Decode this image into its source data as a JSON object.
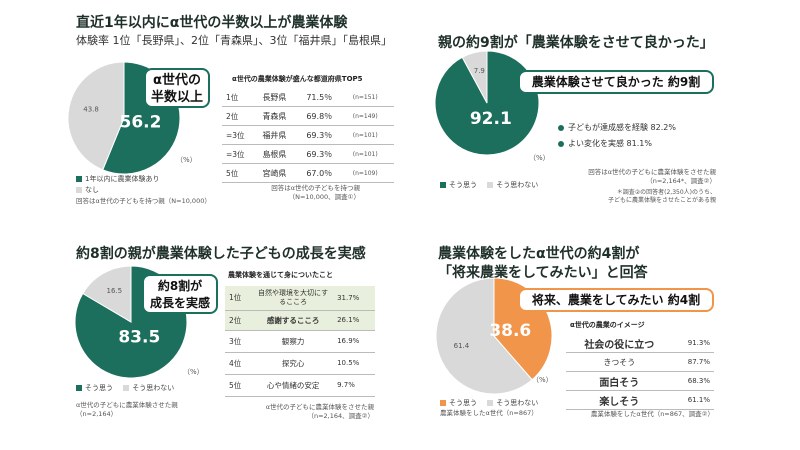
{
  "q1": {
    "title": "直近1年以内にα世代の半数以上が農業体験",
    "subtitle": "体験率 1位「長野県」、2位「青森県」、3位「福井県」「島根県」",
    "callout": [
      "α世代の",
      "半数以上"
    ],
    "unit": "（%）",
    "legend": [
      "1年以内に農業体験あり",
      "なし"
    ],
    "note": "回答はα世代の子どもを持つ親（N=10,000）",
    "table_title": "α世代の農業体験が盛んな都道府県TOP5",
    "table_rows": [
      {
        "rank": "1位",
        "pref": "長野県",
        "pct": "71.5％",
        "n": "(n=151)"
      },
      {
        "rank": "2位",
        "pref": "青森県",
        "pct": "69.8％",
        "n": "(n=149)"
      },
      {
        "rank": "=3位",
        "pref": "福井県",
        "pct": "69.3％",
        "n": "(n=101)"
      },
      {
        "rank": "=3位",
        "pref": "島根県",
        "pct": "69.3％",
        "n": "(n=101)"
      },
      {
        "rank": "5位",
        "pref": "宮崎県",
        "pct": "67.0％",
        "n": "(n=109)"
      }
    ],
    "table_note": [
      "回答はα世代の子どもを持つ親",
      "（N=10,000、調査①）"
    ]
  },
  "q2": {
    "title": "親の約9割が「農業体験をさせて良かった」",
    "callout": "農業体験させて良かった 約9割",
    "bullets": [
      "子どもが達成感を経験 82.2%",
      "よい変化を実感 81.1%"
    ],
    "unit": "（%）",
    "legend": [
      "そう思う",
      "そう思わない"
    ],
    "note": [
      "回答はα世代の子どもに農業体験をさせた親",
      "（n=2,164*、調査②）"
    ],
    "note2": [
      "＊調査②の回答者(2,350人)のうち、",
      "子どもに農業体験をさせたことがある親"
    ]
  },
  "q3": {
    "title": "約8割の親が農業体験した子どもの成長を実感",
    "callout": [
      "約8割が",
      "成長を実感"
    ],
    "unit": "（%）",
    "legend": [
      "そう思う",
      "そう思わない"
    ],
    "note": [
      "α世代の子どもに農業体験させた親",
      "（n=2,164）"
    ],
    "table_title": "農業体験を通じて身についたこと",
    "table_rows": [
      {
        "rank": "1位",
        "item": "自然や環境を大切にするこころ",
        "pct": "31.7%"
      },
      {
        "rank": "2位",
        "item": "感謝するこころ",
        "pct": "26.1%"
      },
      {
        "rank": "3位",
        "item": "観察力",
        "pct": "16.9%"
      },
      {
        "rank": "4位",
        "item": "探究心",
        "pct": "10.5%"
      },
      {
        "rank": "5位",
        "item": "心や情緒の安定",
        "pct": "9.7%"
      }
    ],
    "table_note": [
      "α世代の子どもに農業体験をさせた親",
      "（n=2,164、調査②）"
    ]
  },
  "q4": {
    "title": [
      "農業体験をしたα世代の約4割が",
      "「将来農業をしてみたい」と回答"
    ],
    "callout": "将来、農業をしてみたい 約4割",
    "unit": "（%）",
    "legend": [
      "そう思う",
      "そう思わない"
    ],
    "note": "農業体験をしたα世代（n=867）",
    "table_title": "α世代の農業のイメージ",
    "table_rows": [
      {
        "item": "社会の役に立つ",
        "pct": "91.3%"
      },
      {
        "item": "きつそう",
        "pct": "87.7%"
      },
      {
        "item": "面白そう",
        "pct": "68.3%"
      },
      {
        "item": "楽しそう",
        "pct": "61.1%"
      }
    ],
    "table_note": "農業体験をしたα世代（n=867、調査②）"
  },
  "chart_data": [
    {
      "type": "pie",
      "categories": [
        "1年以内に農業体験あり",
        "なし"
      ],
      "values": [
        56.2,
        43.8
      ],
      "colors": [
        "#1c6f5c",
        "#d9d9d9"
      ]
    },
    {
      "type": "pie",
      "categories": [
        "そう思う",
        "そう思わない"
      ],
      "values": [
        92.1,
        7.9
      ],
      "colors": [
        "#1c6f5c",
        "#d9d9d9"
      ]
    },
    {
      "type": "pie",
      "categories": [
        "そう思う",
        "そう思わない"
      ],
      "values": [
        83.5,
        16.5
      ],
      "colors": [
        "#1c6f5c",
        "#d9d9d9"
      ]
    },
    {
      "type": "pie",
      "categories": [
        "そう思う",
        "そう思わない"
      ],
      "values": [
        38.6,
        61.4
      ],
      "colors": [
        "#f0954a",
        "#d9d9d9"
      ]
    }
  ]
}
